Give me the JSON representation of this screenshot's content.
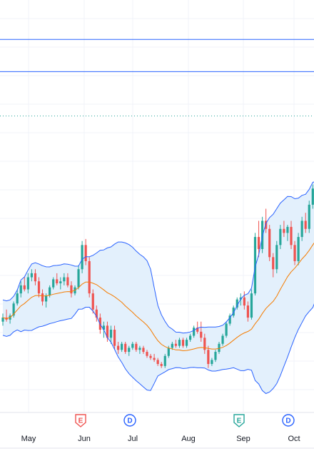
{
  "chart_data": {
    "type": "candlestick",
    "colors": {
      "up": "#26a69a",
      "down": "#ef5350",
      "band_line": "#2962ff",
      "band_fill": "#e3f0fc",
      "middle_line": "#f57c00",
      "hline": "#2962ff",
      "dotted_line": "#26a69a",
      "grid": "#f0f3fa",
      "axis_text": "#131722"
    },
    "x_labels": [
      "May",
      "Jun",
      "Jul",
      "Aug",
      "Sep",
      "Oct"
    ],
    "y_range": [
      0,
      100
    ],
    "horizontal_lines": [
      {
        "style": "solid",
        "level": 92
      },
      {
        "style": "solid",
        "level": 84
      },
      {
        "style": "dotted",
        "level": 73
      }
    ],
    "ohlc": [
      [
        22,
        24,
        21,
        23
      ],
      [
        23,
        25,
        22,
        22.5
      ],
      [
        22.5,
        24,
        21.5,
        23.5
      ],
      [
        23.5,
        27,
        23,
        26.5
      ],
      [
        26.5,
        30,
        26,
        29
      ],
      [
        29,
        32,
        28,
        31
      ],
      [
        31,
        33,
        29.5,
        30
      ],
      [
        30,
        34,
        29,
        33
      ],
      [
        33,
        35,
        32,
        34
      ],
      [
        34,
        35,
        31,
        32
      ],
      [
        32,
        33,
        28,
        29
      ],
      [
        29,
        30,
        26,
        27
      ],
      [
        27,
        29,
        25.5,
        28.5
      ],
      [
        28.5,
        31,
        28,
        30.5
      ],
      [
        30.5,
        33,
        30,
        32.5
      ],
      [
        32.5,
        34,
        31,
        31.5
      ],
      [
        31.5,
        33,
        30,
        32
      ],
      [
        32,
        34,
        31,
        33
      ],
      [
        33,
        34,
        30.5,
        31
      ],
      [
        31,
        32,
        28,
        29
      ],
      [
        29,
        31,
        28.5,
        30.5
      ],
      [
        30.5,
        36,
        30,
        35
      ],
      [
        35,
        42,
        34,
        41
      ],
      [
        41,
        42.5,
        36,
        37
      ],
      [
        37,
        38,
        28,
        29
      ],
      [
        29,
        30,
        24,
        25
      ],
      [
        25,
        26,
        22,
        23
      ],
      [
        23,
        24,
        19,
        20
      ],
      [
        20,
        22,
        18,
        21
      ],
      [
        21,
        22,
        17,
        18
      ],
      [
        18,
        21,
        16.5,
        20
      ],
      [
        20,
        21,
        15,
        16
      ],
      [
        16,
        17,
        14,
        15
      ],
      [
        15,
        17,
        14.5,
        16.5
      ],
      [
        16.5,
        17,
        14,
        14.5
      ],
      [
        14.5,
        16,
        13.5,
        15.5
      ],
      [
        15.5,
        17,
        15,
        16.5
      ],
      [
        16.5,
        17,
        14.5,
        15
      ],
      [
        15,
        16,
        14,
        15.5
      ],
      [
        15.5,
        16,
        14,
        14.5
      ],
      [
        14.5,
        15,
        13,
        13.5
      ],
      [
        13.5,
        14,
        12.5,
        13
      ],
      [
        13,
        14,
        12,
        12.5
      ],
      [
        12.5,
        13,
        11,
        11.5
      ],
      [
        11.5,
        12,
        10.5,
        11
      ],
      [
        11,
        14,
        10.5,
        13.5
      ],
      [
        13.5,
        16,
        13,
        15.5
      ],
      [
        15.5,
        17,
        15,
        16.5
      ],
      [
        16.5,
        17.5,
        15.5,
        16
      ],
      [
        16,
        18,
        15.5,
        17.5
      ],
      [
        17.5,
        18,
        15.5,
        16
      ],
      [
        16,
        18,
        15.5,
        17.5
      ],
      [
        17.5,
        19,
        17,
        18.5
      ],
      [
        18.5,
        21,
        18,
        20.5
      ],
      [
        20.5,
        22,
        19,
        19.5
      ],
      [
        19.5,
        22,
        17,
        18
      ],
      [
        18,
        19,
        14,
        15
      ],
      [
        15,
        16,
        10.5,
        11.5
      ],
      [
        11.5,
        13,
        11,
        12.5
      ],
      [
        12.5,
        15,
        12,
        14.5
      ],
      [
        14.5,
        17,
        14,
        16.5
      ],
      [
        16.5,
        19,
        16,
        18.5
      ],
      [
        18.5,
        22,
        18,
        21.5
      ],
      [
        21.5,
        24,
        21,
        23.5
      ],
      [
        23.5,
        26,
        23,
        25.5
      ],
      [
        25.5,
        28,
        25,
        27.5
      ],
      [
        27.5,
        29,
        26,
        28
      ],
      [
        28,
        29.5,
        25,
        26
      ],
      [
        26,
        27,
        22,
        23
      ],
      [
        23,
        30,
        22.5,
        29
      ],
      [
        29,
        44,
        28.5,
        43
      ],
      [
        43,
        47,
        38,
        40
      ],
      [
        40,
        48,
        39,
        47
      ],
      [
        47,
        50,
        44,
        45
      ],
      [
        45,
        46,
        37,
        38
      ],
      [
        38,
        39,
        33,
        35
      ],
      [
        35,
        42,
        34,
        41
      ],
      [
        41,
        46,
        40,
        45
      ],
      [
        45,
        47,
        43,
        44
      ],
      [
        44,
        46,
        42,
        45.5
      ],
      [
        45.5,
        47,
        40,
        41
      ],
      [
        41,
        42,
        36,
        37
      ],
      [
        37,
        44,
        36,
        43
      ],
      [
        43,
        48,
        42,
        47
      ],
      [
        47,
        49,
        44,
        45
      ],
      [
        45,
        52,
        44,
        51
      ],
      [
        51,
        56,
        50,
        55
      ],
      [
        55,
        57,
        50,
        51
      ],
      [
        51,
        53,
        47,
        48
      ]
    ]
  },
  "events": [
    {
      "letter": "E",
      "type": "earnings",
      "color": "#ef5350"
    },
    {
      "letter": "D",
      "type": "dividend",
      "color": "#2962ff"
    },
    {
      "letter": "E",
      "type": "earnings",
      "color": "#26a69a"
    },
    {
      "letter": "D",
      "type": "dividend",
      "color": "#2962ff"
    }
  ]
}
